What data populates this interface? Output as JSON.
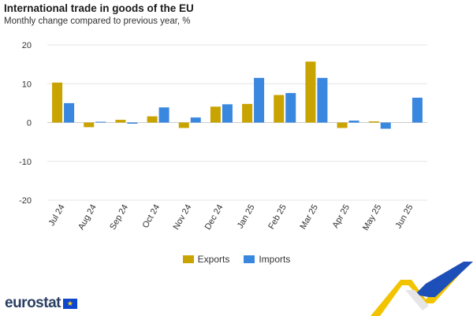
{
  "header": {
    "title": "International trade in goods of the EU",
    "subtitle": "Monthly change compared to previous year, %"
  },
  "chart_data": {
    "type": "bar",
    "categories": [
      "Jul 24",
      "Aug 24",
      "Sep 24",
      "Oct 24",
      "Nov 24",
      "Dec 24",
      "Jan 25",
      "Feb 25",
      "Mar 25",
      "Apr 25",
      "May 25",
      "Jun 25"
    ],
    "series": [
      {
        "name": "Exports",
        "color": "#c9a300",
        "values": [
          10.3,
          -1.2,
          0.7,
          1.6,
          -1.4,
          4.1,
          4.8,
          7.1,
          15.7,
          -1.4,
          0.3,
          0
        ]
      },
      {
        "name": "Imports",
        "color": "#3a87e0",
        "values": [
          5.0,
          0.2,
          -0.3,
          3.9,
          1.3,
          4.7,
          11.5,
          7.6,
          11.5,
          0.5,
          -1.6,
          6.4
        ]
      }
    ],
    "yticks": [
      20,
      10,
      0,
      -10,
      -20
    ],
    "ylim": [
      -20,
      20
    ],
    "grid": true,
    "legend_position": "bottom"
  },
  "branding": {
    "logo_text": "eurostat",
    "flag_stars": "★"
  }
}
